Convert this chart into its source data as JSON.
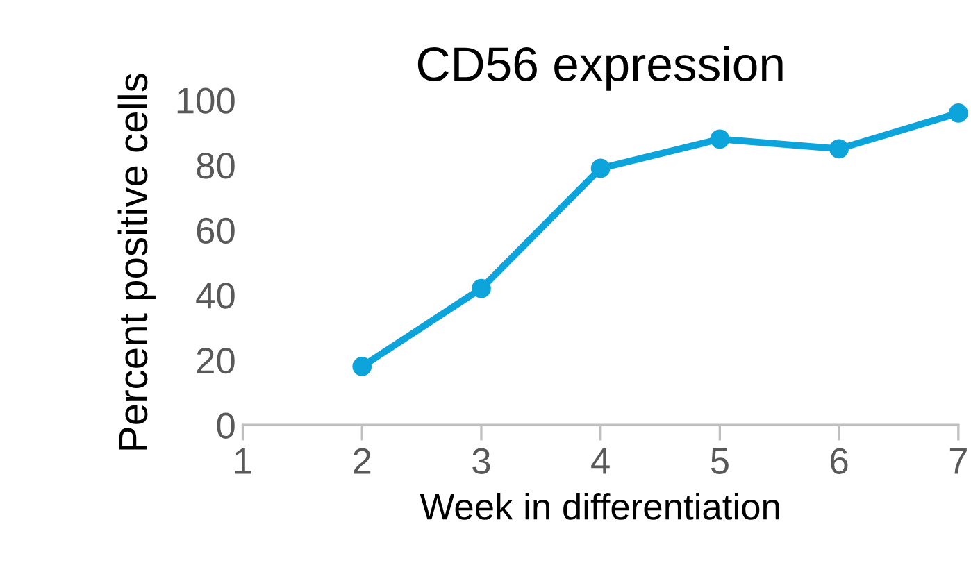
{
  "chart_data": {
    "type": "line",
    "title": "CD56 expression",
    "xlabel": "Week in differentiation",
    "ylabel": "Percent positive cells",
    "x": [
      2,
      3,
      4,
      5,
      6,
      7
    ],
    "series": [
      {
        "color": "#0ca4da",
        "values": [
          18,
          42,
          79,
          88,
          85,
          96
        ]
      }
    ],
    "xlim": [
      1,
      7
    ],
    "xticks": [
      1,
      2,
      3,
      4,
      5,
      6,
      7
    ],
    "ylim": [
      0,
      100
    ],
    "yticks": [
      0,
      20,
      40,
      60,
      80,
      100
    ],
    "grid": false,
    "legend": false,
    "marker": "circle",
    "line_style": "solid"
  }
}
